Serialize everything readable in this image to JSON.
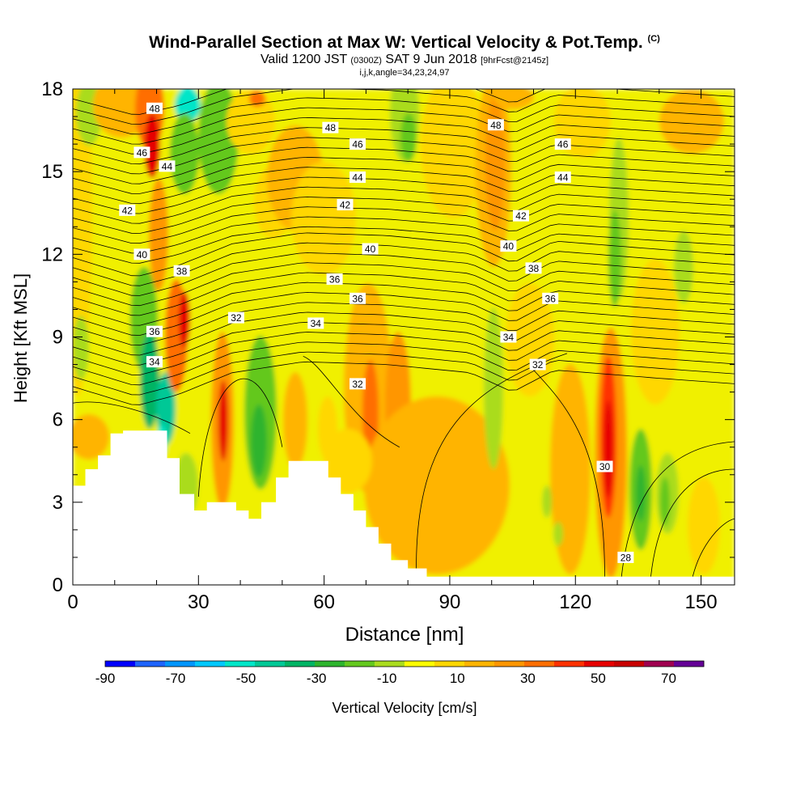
{
  "title": "Wind-Parallel Section at Max W: Vertical Velocity & Pot.Temp.",
  "title_mark": "(C)",
  "subtitle": {
    "part1": "Valid 1200 JST",
    "part2": "(0300Z)",
    "part3": "SAT 9 Jun 2018",
    "part4": "[9hrFcst@2145z]"
  },
  "subsubtitle": "i,j,k,angle=34,23,24,97",
  "chart_data": {
    "type": "heatmap",
    "xlabel": "Distance [nm]",
    "ylabel": "Height [Kft MSL]",
    "xlim": [
      0,
      158
    ],
    "ylim": [
      0,
      18
    ],
    "x_ticks": [
      0,
      30,
      60,
      90,
      120,
      150
    ],
    "y_ticks": [
      0,
      3,
      6,
      9,
      12,
      15,
      18
    ],
    "colorbar": {
      "label": "Vertical Velocity [cm/s]",
      "bounds": [
        -90,
        80
      ],
      "step": 10,
      "tick_labels": [
        "-90",
        "-70",
        "-50",
        "-30",
        "-10",
        "10",
        "30",
        "50",
        "70"
      ],
      "colors": [
        "#0000ff",
        "#1e64ff",
        "#0096ff",
        "#00c8ff",
        "#00e6c8",
        "#00c896",
        "#00b464",
        "#2db42d",
        "#64c81e",
        "#aadc1e",
        "#ffff00",
        "#ffd700",
        "#ffb400",
        "#ff9600",
        "#ff6e00",
        "#ff3200",
        "#e60000",
        "#c80000",
        "#a00050",
        "#640096"
      ]
    },
    "terrain": [
      [
        0,
        3.6
      ],
      [
        3,
        3.6
      ],
      [
        3,
        4.2
      ],
      [
        6,
        4.2
      ],
      [
        6,
        4.7
      ],
      [
        9,
        4.7
      ],
      [
        9,
        5.5
      ],
      [
        12,
        5.5
      ],
      [
        12,
        5.6
      ],
      [
        22.5,
        5.6
      ],
      [
        22.5,
        4.6
      ],
      [
        25.5,
        4.6
      ],
      [
        25.5,
        3.3
      ],
      [
        29,
        3.3
      ],
      [
        29,
        2.7
      ],
      [
        32,
        2.7
      ],
      [
        32,
        3.0
      ],
      [
        39,
        3.0
      ],
      [
        39,
        2.7
      ],
      [
        42,
        2.7
      ],
      [
        42,
        2.4
      ],
      [
        45,
        2.4
      ],
      [
        45,
        3.0
      ],
      [
        48.5,
        3.0
      ],
      [
        48.5,
        3.9
      ],
      [
        51.5,
        3.9
      ],
      [
        51.5,
        4.5
      ],
      [
        61,
        4.5
      ],
      [
        61,
        3.9
      ],
      [
        64,
        3.9
      ],
      [
        64,
        3.3
      ],
      [
        67,
        3.3
      ],
      [
        67,
        2.7
      ],
      [
        70,
        2.7
      ],
      [
        70,
        2.1
      ],
      [
        73,
        2.1
      ],
      [
        73,
        1.5
      ],
      [
        76,
        1.5
      ],
      [
        76,
        0.9
      ],
      [
        80,
        0.9
      ],
      [
        80,
        0.6
      ],
      [
        84.5,
        0.6
      ],
      [
        84.5,
        0.3
      ],
      [
        158,
        0.3
      ]
    ],
    "theta_contour_labels": [
      {
        "value": "48",
        "x": 19.5,
        "y": 17.3
      },
      {
        "value": "48",
        "x": 61.5,
        "y": 16.6
      },
      {
        "value": "48",
        "x": 101,
        "y": 16.7
      },
      {
        "value": "46",
        "x": 16.5,
        "y": 15.7
      },
      {
        "value": "46",
        "x": 68,
        "y": 16.0
      },
      {
        "value": "46",
        "x": 117,
        "y": 16.0
      },
      {
        "value": "44",
        "x": 22.5,
        "y": 15.2
      },
      {
        "value": "44",
        "x": 68,
        "y": 14.8
      },
      {
        "value": "44",
        "x": 117,
        "y": 14.8
      },
      {
        "value": "42",
        "x": 13,
        "y": 13.6
      },
      {
        "value": "42",
        "x": 65,
        "y": 13.8
      },
      {
        "value": "42",
        "x": 107,
        "y": 13.4
      },
      {
        "value": "40",
        "x": 16.5,
        "y": 12.0
      },
      {
        "value": "40",
        "x": 71,
        "y": 12.2
      },
      {
        "value": "40",
        "x": 104,
        "y": 12.3
      },
      {
        "value": "38",
        "x": 26,
        "y": 11.4
      },
      {
        "value": "38",
        "x": 110,
        "y": 11.5
      },
      {
        "value": "36",
        "x": 62.5,
        "y": 11.1
      },
      {
        "value": "36",
        "x": 68,
        "y": 10.4
      },
      {
        "value": "36",
        "x": 114,
        "y": 10.4
      },
      {
        "value": "36",
        "x": 19.5,
        "y": 9.2
      },
      {
        "value": "34",
        "x": 58,
        "y": 9.5
      },
      {
        "value": "34",
        "x": 104,
        "y": 9.0
      },
      {
        "value": "34",
        "x": 19.5,
        "y": 8.1
      },
      {
        "value": "32",
        "x": 39,
        "y": 9.7
      },
      {
        "value": "32",
        "x": 111,
        "y": 8.0
      },
      {
        "value": "32",
        "x": 68,
        "y": 7.3
      },
      {
        "value": "30",
        "x": 127,
        "y": 4.3
      },
      {
        "value": "28",
        "x": 132,
        "y": 1.0
      }
    ]
  }
}
